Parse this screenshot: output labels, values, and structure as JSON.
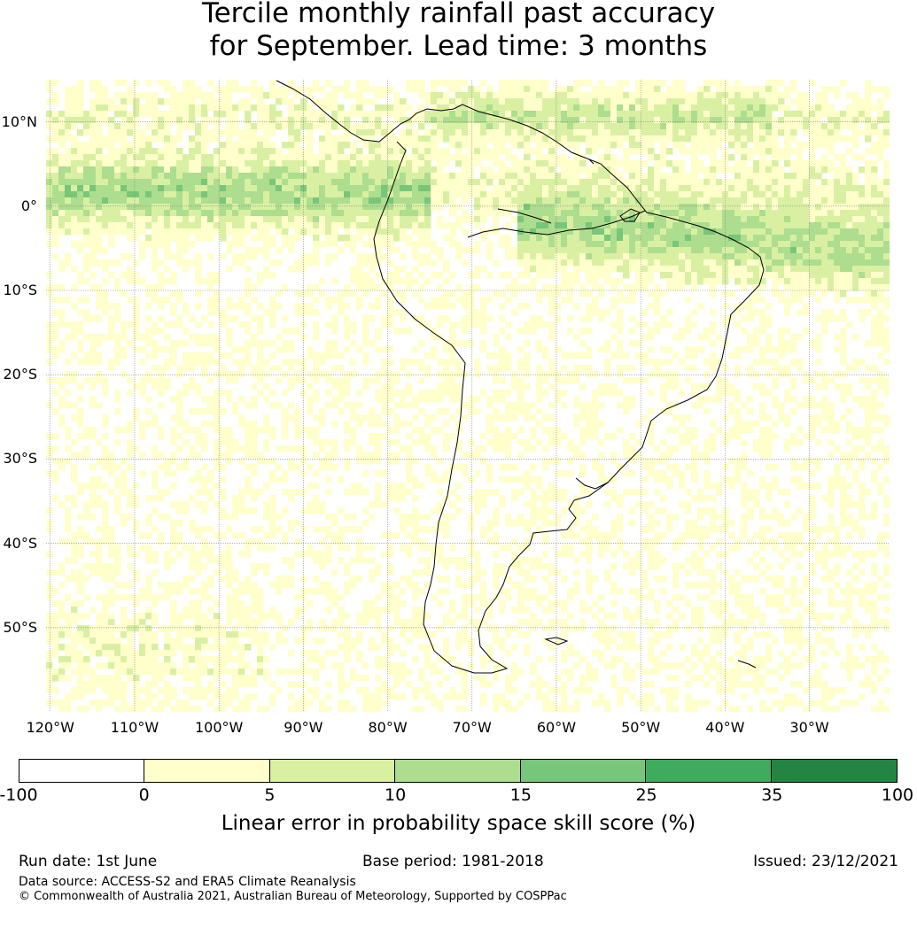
{
  "title_line1": "Tercile monthly rainfall past accuracy",
  "title_line2": "for September. Lead time: 3 months",
  "map": {
    "lat_labels": [
      "10°N",
      "0°",
      "10°S",
      "20°S",
      "30°S",
      "40°S",
      "50°S"
    ],
    "lon_labels": [
      "120°W",
      "110°W",
      "100°W",
      "90°W",
      "80°W",
      "70°W",
      "60°W",
      "50°W",
      "40°W",
      "30°W"
    ],
    "extent": {
      "lon_min": -120.5,
      "lon_max": -20.5,
      "lat_min": -60,
      "lat_max": 15
    },
    "graticule": "dotted grey"
  },
  "colorbar": {
    "ticks": [
      "-100",
      "0",
      "5",
      "10",
      "15",
      "25",
      "35",
      "100"
    ],
    "colors": [
      "#ffffff",
      "#ffffcc",
      "#d9f0a3",
      "#addd8e",
      "#78c679",
      "#41ab5d",
      "#238443"
    ],
    "label": "Linear error in probability space skill score (%)"
  },
  "footer": {
    "run_date": "Run date: 1st June",
    "base_period": "Base period: 1981-2018",
    "issued": "Issued: 23/12/2021",
    "data_source": "Data source: ACCESS-S2 and ERA5 Climate Reanalysis",
    "copyright": "© Commonwealth of Australia 2021, Australian Bureau of Meteorology, Supported by COSPPac"
  }
}
